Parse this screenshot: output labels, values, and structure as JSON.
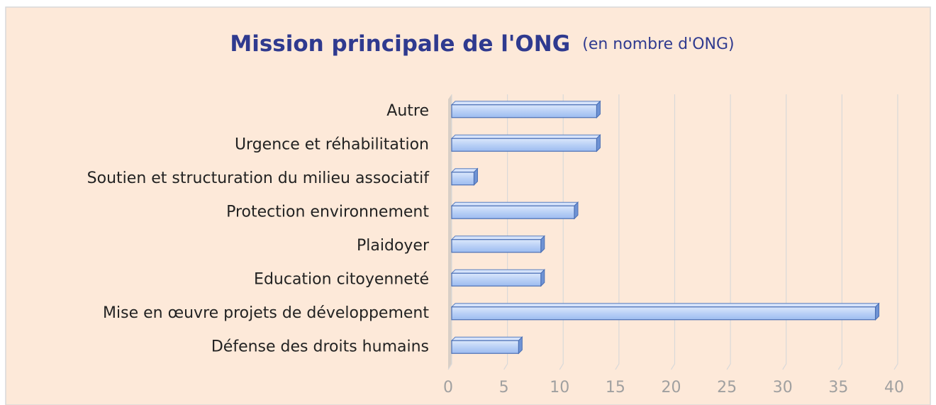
{
  "chart_data": {
    "type": "bar",
    "orientation": "horizontal",
    "title": "Mission principale de l'ONG",
    "subtitle": "(en nombre d'ONG)",
    "categories": [
      "Autre",
      "Urgence et réhabilitation",
      "Soutien et structuration du milieu associatif",
      "Protection environnement",
      "Plaidoyer",
      "Education citoyenneté",
      "Mise en œuvre projets de développement",
      "Défense des droits humains"
    ],
    "values": [
      13,
      13,
      2,
      11,
      8,
      8,
      38,
      6
    ],
    "color": "#b9d0f6",
    "xlim": [
      0,
      40
    ],
    "xticks": [
      0,
      5,
      10,
      15,
      20,
      25,
      30,
      35,
      40
    ],
    "grid": true
  }
}
